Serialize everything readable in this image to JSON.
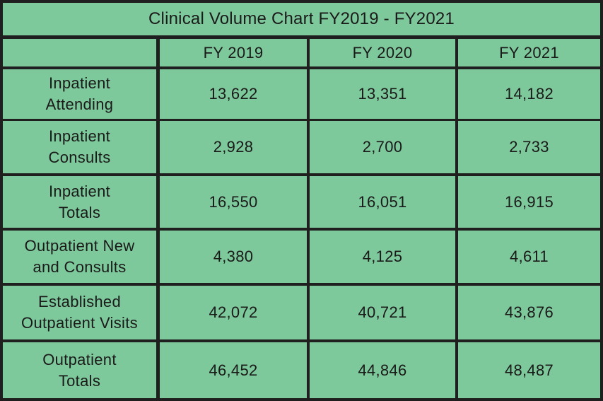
{
  "chart_data": {
    "type": "table",
    "title": "Clinical Volume Chart FY2019 - FY2021",
    "columns": [
      "FY 2019",
      "FY 2020",
      "FY 2021"
    ],
    "rows": [
      {
        "label": "Inpatient\nAttending",
        "values": [
          "13,622",
          "13,351",
          "14,182"
        ]
      },
      {
        "label": "Inpatient\nConsults",
        "values": [
          "2,928",
          "2,700",
          "2,733"
        ]
      },
      {
        "label": "Inpatient\nTotals",
        "values": [
          "16,550",
          "16,051",
          "16,915"
        ]
      },
      {
        "label": "Outpatient New\nand Consults",
        "values": [
          "4,380",
          "4,125",
          "4,611"
        ]
      },
      {
        "label": "Established\nOutpatient Visits",
        "values": [
          "42,072",
          "40,721",
          "43,876"
        ]
      },
      {
        "label": "Outpatient\nTotals",
        "values": [
          "46,452",
          "44,846",
          "48,487"
        ]
      }
    ],
    "colors": {
      "cell": "#7ec99b",
      "border": "#1f1f1f",
      "text": "#1a1a1a"
    }
  }
}
